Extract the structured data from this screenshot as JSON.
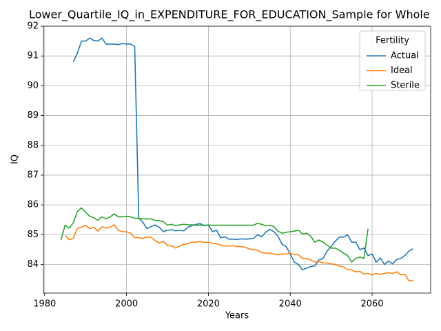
{
  "chart_data": {
    "type": "line",
    "title": "Lower_Quartile_IQ_in_EXPENDITURE_FOR_EDUCATION_Sample for Whole",
    "xlabel": "Years",
    "ylabel": "IQ",
    "legend_title": "Fertility",
    "legend_loc": "upper right",
    "grid": true,
    "x": [
      1984,
      1985,
      1986,
      1987,
      1988,
      1989,
      1990,
      1991,
      1992,
      1993,
      1994,
      1995,
      1996,
      1997,
      1998,
      1999,
      2000,
      2001,
      2002,
      2003,
      2004,
      2005,
      2006,
      2007,
      2008,
      2009,
      2010,
      2011,
      2012,
      2013,
      2014,
      2015,
      2016,
      2017,
      2018,
      2019,
      2020,
      2021,
      2022,
      2023,
      2024,
      2025,
      2026,
      2027,
      2028,
      2029,
      2030,
      2031,
      2032,
      2033,
      2034,
      2035,
      2036,
      2037,
      2038,
      2039,
      2040,
      2041,
      2042,
      2043,
      2044,
      2045,
      2046,
      2047,
      2048,
      2049,
      2050,
      2051,
      2052,
      2053,
      2054,
      2055,
      2056,
      2057,
      2058,
      2059,
      2060,
      2061,
      2062,
      2063,
      2064,
      2065,
      2066,
      2067,
      2068,
      2069,
      2070
    ],
    "series": [
      {
        "name": "Actual",
        "color": "#1f77b4",
        "values": [
          null,
          null,
          null,
          90.8,
          91.1,
          91.5,
          91.5,
          91.6,
          91.52,
          91.5,
          91.6,
          91.4,
          91.4,
          91.4,
          91.38,
          91.42,
          91.4,
          91.4,
          91.32,
          85.55,
          85.42,
          85.2,
          85.27,
          85.33,
          85.25,
          85.1,
          85.15,
          85.17,
          85.13,
          85.15,
          85.13,
          85.25,
          85.3,
          85.35,
          85.37,
          85.3,
          85.33,
          85.1,
          85.15,
          84.9,
          84.93,
          84.85,
          84.85,
          84.84,
          84.86,
          84.85,
          84.86,
          84.87,
          85.0,
          84.93,
          85.08,
          85.18,
          85.1,
          84.95,
          84.68,
          84.6,
          84.35,
          84.08,
          84.0,
          83.82,
          83.88,
          83.93,
          83.95,
          84.15,
          84.2,
          84.45,
          84.6,
          84.78,
          84.92,
          84.92,
          85.0,
          84.75,
          84.75,
          84.5,
          84.55,
          84.3,
          84.35,
          84.08,
          84.22,
          84.0,
          84.12,
          84.02,
          84.17,
          84.2,
          84.3,
          84.45,
          84.53
        ]
      },
      {
        "name": "Ideal",
        "color": "#ff7f0e",
        "values": [
          null,
          84.98,
          84.83,
          84.88,
          85.22,
          85.25,
          85.32,
          85.2,
          85.25,
          85.12,
          85.27,
          85.22,
          85.25,
          85.33,
          85.15,
          85.1,
          85.1,
          85.05,
          84.9,
          84.9,
          84.88,
          84.92,
          84.92,
          84.8,
          84.72,
          84.78,
          84.63,
          84.63,
          84.55,
          84.62,
          84.68,
          84.7,
          84.75,
          84.75,
          84.77,
          84.74,
          84.75,
          84.7,
          84.7,
          84.65,
          84.62,
          84.62,
          84.63,
          84.6,
          84.6,
          84.58,
          84.52,
          84.5,
          84.48,
          84.4,
          84.38,
          84.38,
          84.35,
          84.32,
          84.35,
          84.35,
          84.38,
          84.33,
          84.33,
          84.2,
          84.2,
          84.15,
          84.08,
          84.1,
          84.05,
          84.05,
          84.02,
          84.0,
          83.95,
          83.92,
          83.83,
          83.82,
          83.75,
          83.77,
          83.68,
          83.7,
          83.65,
          83.7,
          83.67,
          83.7,
          83.72,
          83.7,
          83.75,
          83.65,
          83.67,
          83.45,
          83.46
        ]
      },
      {
        "name": "Sterile",
        "color": "#2ca02c",
        "values": [
          84.83,
          85.32,
          85.22,
          85.4,
          85.78,
          85.9,
          85.75,
          85.62,
          85.57,
          85.48,
          85.6,
          85.53,
          85.6,
          85.7,
          85.6,
          85.6,
          85.62,
          85.6,
          85.55,
          85.55,
          85.53,
          85.53,
          85.53,
          85.48,
          85.47,
          85.44,
          85.32,
          85.35,
          85.3,
          85.33,
          85.35,
          85.33,
          85.33,
          85.32,
          85.32,
          85.32,
          85.32,
          85.32,
          85.32,
          85.32,
          85.32,
          85.32,
          85.32,
          85.32,
          85.32,
          85.32,
          85.32,
          85.32,
          85.38,
          85.35,
          85.3,
          85.32,
          85.27,
          85.12,
          85.05,
          85.08,
          85.1,
          85.12,
          85.15,
          85.02,
          85.05,
          84.95,
          84.75,
          84.82,
          84.75,
          84.65,
          84.55,
          84.55,
          84.48,
          84.38,
          84.3,
          84.08,
          84.2,
          84.25,
          84.2,
          85.2,
          null,
          null,
          null,
          null,
          null,
          null,
          null,
          null,
          null,
          null,
          null
        ]
      }
    ],
    "xlim": [
      1979.7,
      2074.3
    ],
    "xticks": [
      1980,
      2000,
      2020,
      2040,
      2060
    ],
    "ylim": [
      83.04,
      92.0
    ],
    "yticks": [
      84,
      85,
      86,
      87,
      88,
      89,
      90,
      91,
      92
    ]
  }
}
